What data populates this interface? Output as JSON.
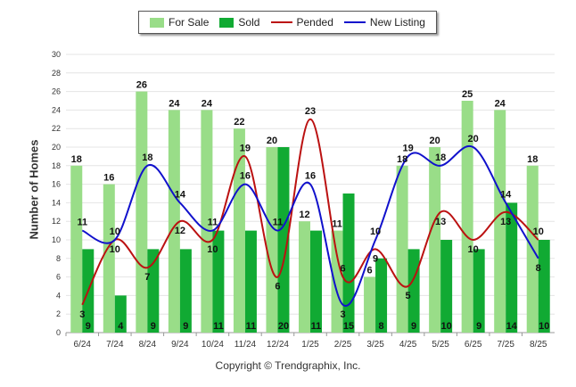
{
  "legend": {
    "for_sale": "For Sale",
    "sold": "Sold",
    "pended": "Pended",
    "new_listing": "New Listing"
  },
  "ylabel": "Number of Homes",
  "copyright": "Copyright © Trendgraphix, Inc.",
  "chart_data": {
    "type": "bar",
    "title": "",
    "xlabel": "",
    "ylabel": "Number of Homes",
    "ylim": [
      0,
      30
    ],
    "yticks": [
      0,
      2,
      4,
      6,
      8,
      10,
      12,
      14,
      16,
      18,
      20,
      22,
      24,
      26,
      28,
      30
    ],
    "grid": true,
    "legend_position": "top-center",
    "categories": [
      "6/24",
      "7/24",
      "8/24",
      "9/24",
      "10/24",
      "11/24",
      "12/24",
      "1/25",
      "2/25",
      "3/25",
      "4/25",
      "5/25",
      "6/25",
      "7/25",
      "8/25"
    ],
    "series": [
      {
        "name": "For Sale",
        "type": "bar",
        "color": "#99dd88",
        "values": [
          18,
          16,
          26,
          24,
          24,
          22,
          20,
          12,
          11,
          6,
          18,
          20,
          25,
          24,
          18
        ]
      },
      {
        "name": "Sold",
        "type": "bar",
        "color": "#11aa33",
        "values": [
          9,
          4,
          9,
          9,
          11,
          11,
          20,
          11,
          15,
          8,
          9,
          10,
          9,
          14,
          10
        ]
      },
      {
        "name": "Pended",
        "type": "line",
        "color": "#bb1111",
        "values": [
          3,
          10,
          7,
          12,
          10,
          19,
          6,
          23,
          6,
          9,
          5,
          13,
          10,
          13,
          10
        ]
      },
      {
        "name": "New Listing",
        "type": "line",
        "color": "#1111cc",
        "values": [
          11,
          10,
          18,
          14,
          11,
          16,
          11,
          16,
          3,
          10,
          19,
          18,
          20,
          14,
          8
        ]
      }
    ]
  }
}
